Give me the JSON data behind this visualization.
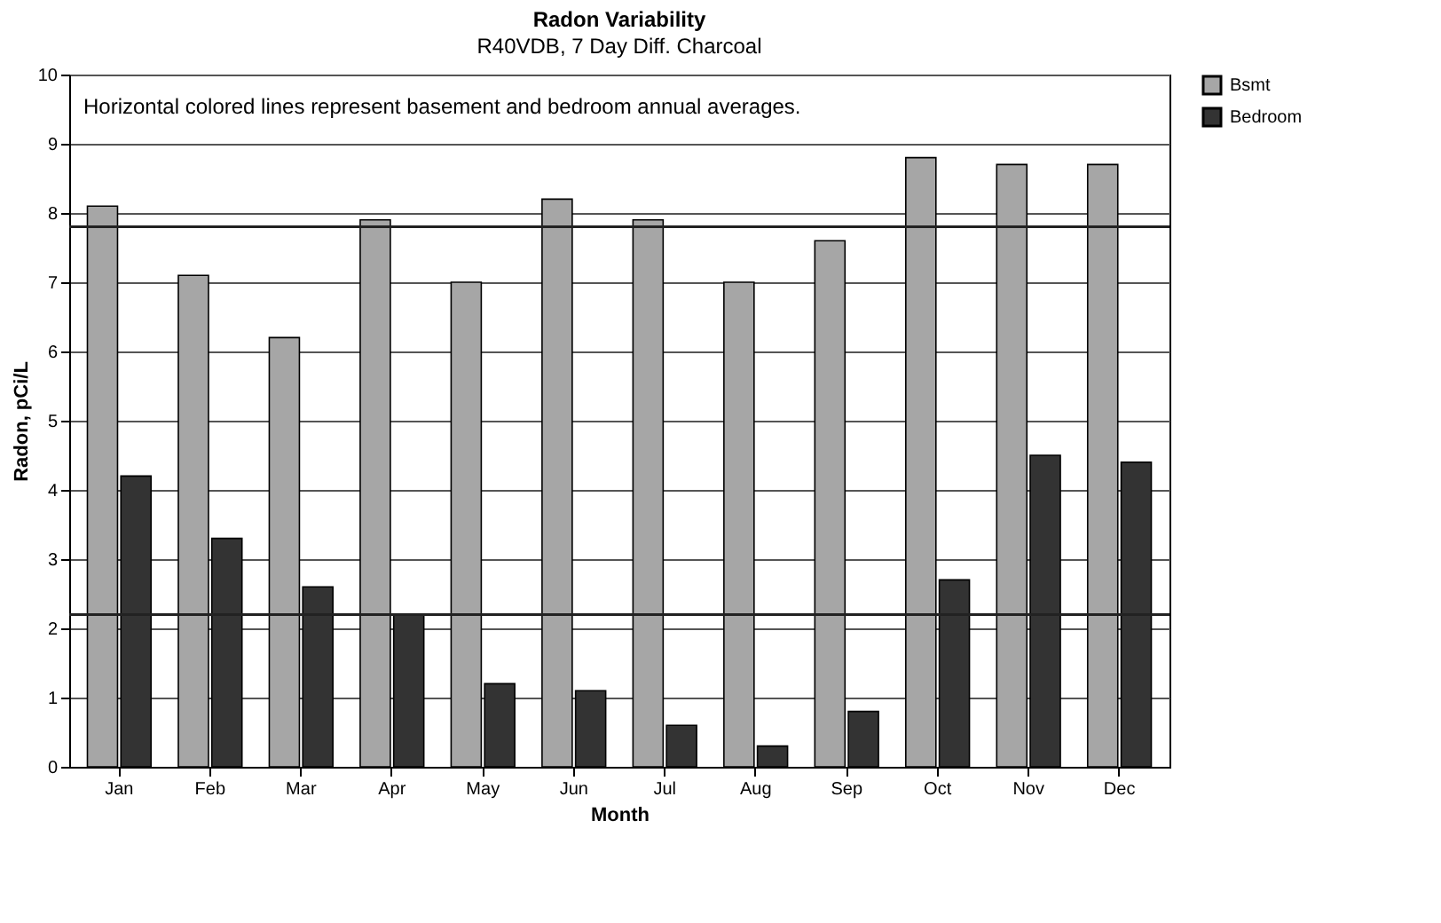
{
  "chart_data": {
    "type": "bar",
    "title": "Radon Variability",
    "subtitle": "R40VDB, 7 Day Diff. Charcoal",
    "xlabel": "Month",
    "ylabel": "Radon, pCi/L",
    "categories": [
      "Jan",
      "Feb",
      "Mar",
      "Apr",
      "May",
      "Jun",
      "Jul",
      "Aug",
      "Sep",
      "Oct",
      "Nov",
      "Dec"
    ],
    "series": [
      {
        "name": "Bsmt",
        "color": "#a6a6a6",
        "values": [
          8.1,
          7.1,
          6.2,
          7.9,
          7.0,
          8.2,
          7.9,
          7.0,
          7.6,
          8.8,
          8.7,
          8.7
        ]
      },
      {
        "name": "Bedroom",
        "color": "#333333",
        "values": [
          4.2,
          3.3,
          2.6,
          2.2,
          1.2,
          1.1,
          0.6,
          0.3,
          0.8,
          2.7,
          4.5,
          4.4
        ]
      }
    ],
    "ylim": [
      0,
      10
    ],
    "yticks": [
      0,
      1,
      2,
      3,
      4,
      5,
      6,
      7,
      8,
      9,
      10
    ],
    "grid": "y",
    "legend": "right",
    "ref_lines": [
      {
        "axis": "y",
        "value": 7.8,
        "color": "#222222"
      },
      {
        "axis": "y",
        "value": 2.2,
        "color": "#222222"
      }
    ],
    "annotations": [
      "Horizontal colored lines represent basement and bedroom annual averages."
    ]
  }
}
